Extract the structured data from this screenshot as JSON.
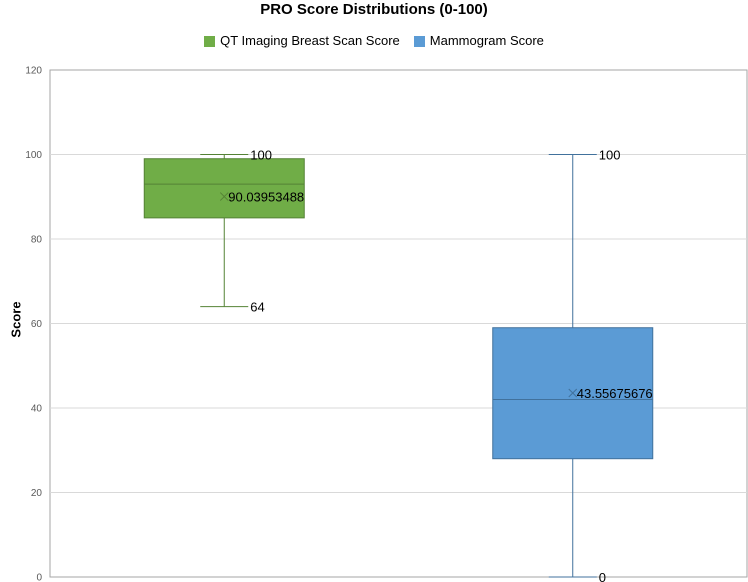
{
  "chart_data": {
    "type": "box",
    "title": "PRO Score Distributions (0-100)",
    "ylabel": "Score",
    "xlabel": "",
    "ylim": [
      0,
      120
    ],
    "yticks": [
      0,
      20,
      40,
      60,
      80,
      100,
      120
    ],
    "grid": true,
    "legend_position": "top",
    "series": [
      {
        "name": "QT Imaging Breast Scan Score",
        "color": "#70AD47",
        "edge_color": "#548235",
        "min": 64,
        "q1": 85,
        "median": 93,
        "q3": 99,
        "max": 100,
        "mean": 90.03953488,
        "labels": {
          "max": "100",
          "mean": "90.03953488",
          "min": "64"
        }
      },
      {
        "name": "Mammogram Score",
        "color": "#5B9BD5",
        "edge_color": "#41719C",
        "min": 0,
        "q1": 28,
        "median": 42,
        "q3": 59,
        "max": 100,
        "mean": 43.55675676,
        "labels": {
          "max": "100",
          "mean": "43.55675676",
          "min": "0"
        }
      }
    ]
  }
}
